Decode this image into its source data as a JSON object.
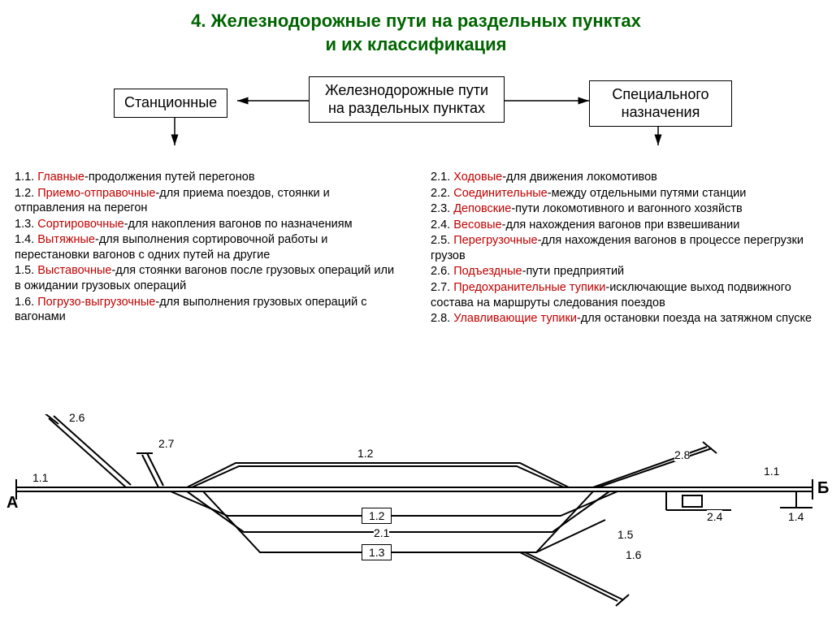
{
  "title_line1": "4. Железнодорожные пути на раздельных пунктах",
  "title_line2": "и их классификация",
  "boxes": {
    "center": "Железнодорожные пути\nна раздельных пунктах",
    "left": "Станционные",
    "right": "Специального\nназначения"
  },
  "left_items": [
    {
      "num": "1.1.",
      "term": "Главные",
      "desc": "-продолжения путей перегонов"
    },
    {
      "num": "1.2.",
      "term": "Приемо-отправочные",
      "desc": "-для приема поездов, стоянки и отправления на перегон"
    },
    {
      "num": "1.3.",
      "term": "Сортировочные",
      "desc": "-для накопления вагонов по назначениям"
    },
    {
      "num": "1.4.",
      "term": "Вытяжные",
      "desc": "-для выполнения сортировочной работы и перестановки вагонов с одних путей на другие"
    },
    {
      "num": "1.5.",
      "term": "Выставочные",
      "desc": "-для стоянки вагонов после грузовых операций или в ожидании грузовых операций"
    },
    {
      "num": "1.6.",
      "term": "Погрузо-выгрузочные",
      "desc": "-для выполнения грузовых операций с вагонами"
    }
  ],
  "right_items": [
    {
      "num": "2.1.",
      "term": "Ходовые",
      "desc": "-для движения локомотивов"
    },
    {
      "num": "2.2.",
      "term": "Соединительные",
      "desc": "-между отдельными путями станции"
    },
    {
      "num": "2.3.",
      "term": "Деповские",
      "desc": "-пути локомотивного и вагонного хозяйств"
    },
    {
      "num": "2.4.",
      "term": "Весовые",
      "desc": "-для нахождения вагонов при взвешивании"
    },
    {
      "num": "2.5.",
      "term": "Перегрузочные",
      "desc": "-для нахождения вагонов в процессе перегрузки грузов"
    },
    {
      "num": "2.6.",
      "term": "Подъездные",
      "desc": "-пути предприятий"
    },
    {
      "num": "2.7.",
      "term": "Предохранительные тупики",
      "desc": "-исключающие выход подвижного состава на маршруты следования поездов"
    },
    {
      "num": "2.8.",
      "term": "Улавливающие тупики",
      "desc": "-для остановки поезда на затяжном спуске"
    }
  ],
  "diagram": {
    "end_A": "А",
    "end_B": "Б",
    "labels": {
      "l26": "2.6",
      "l27": "2.7",
      "l11a": "1.1",
      "l12top": "1.2",
      "l28": "2.8",
      "l11b": "1.1",
      "l12box": "1.2",
      "l21": "2.1",
      "l13box": "1.3",
      "l15": "1.5",
      "l16": "1.6",
      "l24": "2.4",
      "l14": "1.4"
    },
    "stroke": "#000000",
    "stroke_width": 2
  }
}
